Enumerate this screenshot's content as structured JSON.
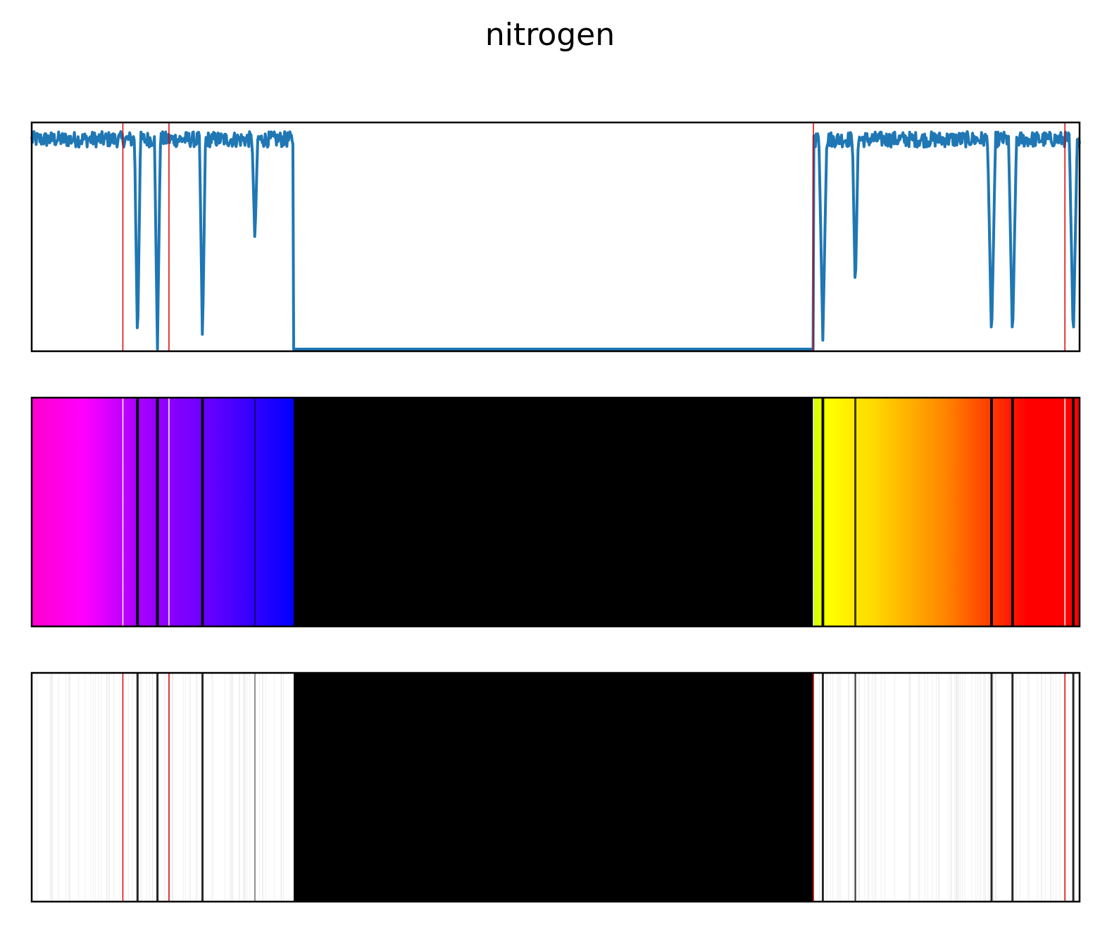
{
  "chart_data": {
    "type": "line",
    "title": "nitrogen",
    "xlabel": "",
    "ylabel": "",
    "x_range": [
      0,
      1
    ],
    "y_range": [
      0,
      1
    ],
    "axes_ticks": false,
    "panels": [
      "transmission-line",
      "color-spectrum",
      "grayscale-spectrum"
    ],
    "gap": [
      0.25,
      0.746
    ],
    "baseline_level": 0.99,
    "noise_level": 0.94,
    "marker_lines": [
      0.087,
      0.131,
      0.746,
      0.986
    ],
    "absorption_lines": [
      {
        "x": 0.101,
        "depth": 1.0,
        "width": 0.003
      },
      {
        "x": 0.12,
        "depth": 1.0,
        "width": 0.003
      },
      {
        "x": 0.163,
        "depth": 0.98,
        "width": 0.003
      },
      {
        "x": 0.213,
        "depth": 0.52,
        "width": 0.003
      },
      {
        "x": 0.755,
        "depth": 0.96,
        "width": 0.004
      },
      {
        "x": 0.786,
        "depth": 0.75,
        "width": 0.003
      },
      {
        "x": 0.916,
        "depth": 0.97,
        "width": 0.004
      },
      {
        "x": 0.936,
        "depth": 0.97,
        "width": 0.004
      },
      {
        "x": 0.994,
        "depth": 0.97,
        "width": 0.004
      }
    ],
    "spectrum_colors": [
      {
        "x": 0.0,
        "color": "#ff00cc"
      },
      {
        "x": 0.05,
        "color": "#ff00ff"
      },
      {
        "x": 0.1,
        "color": "#aa00ff"
      },
      {
        "x": 0.17,
        "color": "#6600ff"
      },
      {
        "x": 0.25,
        "color": "#0000ff"
      },
      {
        "x": 0.746,
        "color": "#ccff00"
      },
      {
        "x": 0.76,
        "color": "#ffff00"
      },
      {
        "x": 0.8,
        "color": "#ffdd00"
      },
      {
        "x": 0.87,
        "color": "#ff8800"
      },
      {
        "x": 0.92,
        "color": "#ff3300"
      },
      {
        "x": 0.95,
        "color": "#ff0000"
      },
      {
        "x": 1.0,
        "color": "#ff0000"
      }
    ],
    "line_color": "#1f77b4",
    "marker_color": "#dd0000"
  }
}
